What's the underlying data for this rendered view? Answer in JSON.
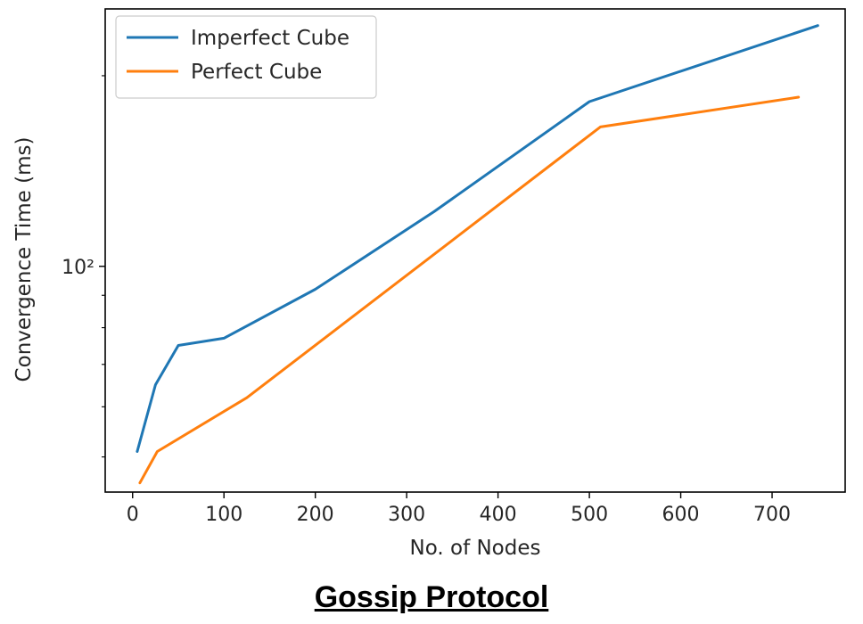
{
  "caption": "Gossip Protocol",
  "chart_data": {
    "type": "line",
    "title": "",
    "xlabel": "No. of Nodes",
    "ylabel": "Convergence Time (ms)",
    "xscale": "linear",
    "yscale": "log",
    "xlim": [
      -30,
      780
    ],
    "ylim": [
      44,
      255
    ],
    "xticks": [
      0,
      100,
      200,
      300,
      400,
      500,
      600,
      700
    ],
    "yticks_major": [
      {
        "value": 100,
        "label": "10²"
      }
    ],
    "yticks_minor": [
      50,
      60,
      70,
      80,
      90,
      200
    ],
    "grid": false,
    "legend_position": "top-left",
    "series": [
      {
        "name": "Imperfect Cube",
        "color": "#1f77b4",
        "x": [
          5,
          25,
          50,
          100,
          200,
          330,
          500,
          750
        ],
        "y": [
          51,
          65,
          75,
          77,
          92,
          122,
          182,
          240
        ]
      },
      {
        "name": "Perfect Cube",
        "color": "#ff7f0e",
        "x": [
          8,
          27,
          125,
          512,
          729
        ],
        "y": [
          45.5,
          51,
          62,
          166,
          185
        ]
      }
    ]
  }
}
